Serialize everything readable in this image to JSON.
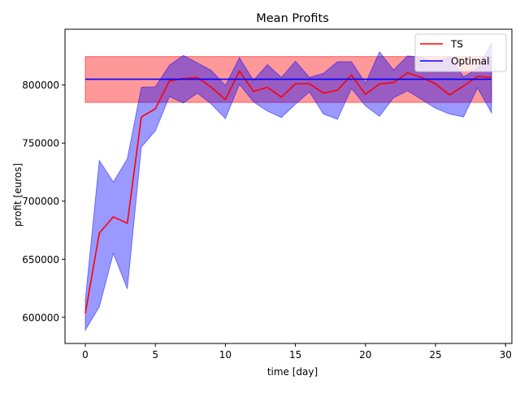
{
  "chart_data": {
    "type": "line",
    "title": "Mean Profits",
    "xlabel": "time [day]",
    "ylabel": "profit [euros]",
    "xlim": [
      -1.45,
      30.45
    ],
    "ylim": [
      577500,
      848000
    ],
    "x_ticks": [
      0,
      5,
      10,
      15,
      20,
      25,
      30
    ],
    "y_ticks": [
      600000,
      650000,
      700000,
      750000,
      800000
    ],
    "grid": false,
    "legend_position": "top-right",
    "series": [
      {
        "name": "TS",
        "color": "#ff0000",
        "x": [
          0,
          1,
          2,
          3,
          4,
          5,
          6,
          7,
          8,
          9,
          10,
          11,
          12,
          13,
          14,
          15,
          16,
          17,
          18,
          19,
          20,
          21,
          22,
          23,
          24,
          25,
          26,
          27,
          28,
          29
        ],
        "values": [
          603500,
          672500,
          686500,
          681000,
          772500,
          779500,
          803500,
          805500,
          806500,
          798000,
          787500,
          812000,
          794500,
          798000,
          789500,
          801000,
          801000,
          793000,
          795500,
          808500,
          792000,
          801000,
          802000,
          810500,
          806500,
          801000,
          791500,
          799000,
          807500,
          806500
        ],
        "band_upper": [
          615000,
          735000,
          716500,
          736500,
          798000,
          798500,
          817000,
          825500,
          819000,
          812500,
          799500,
          823500,
          804000,
          817500,
          806500,
          820500,
          806500,
          810000,
          820000,
          820000,
          801500,
          828500,
          813000,
          825000,
          824000,
          819000,
          824500,
          807000,
          814000,
          836000
        ],
        "band_lower": [
          589000,
          609000,
          655000,
          624500,
          746500,
          760500,
          790000,
          784500,
          793000,
          783500,
          771000,
          800500,
          785500,
          777500,
          772000,
          783500,
          794000,
          775000,
          770500,
          797000,
          782000,
          773000,
          789000,
          795000,
          787500,
          780000,
          775000,
          772500,
          797500,
          776000
        ]
      },
      {
        "name": "Optimal",
        "color": "#0000ff",
        "x_range": [
          0,
          29
        ],
        "value": 805000,
        "band_upper": 824500,
        "band_lower": 785000
      }
    ]
  }
}
